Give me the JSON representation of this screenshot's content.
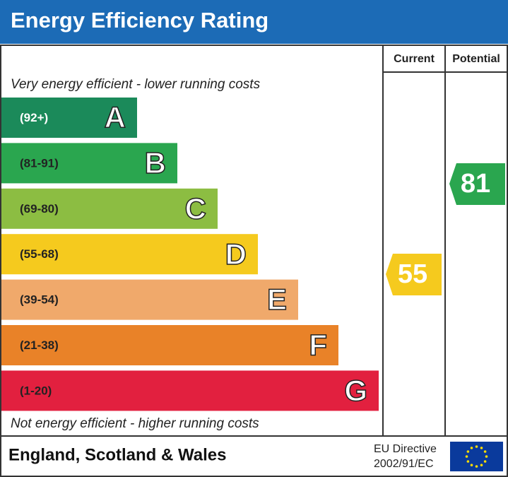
{
  "header": {
    "title": "Energy Efficiency Rating"
  },
  "columns": {
    "current": "Current",
    "potential": "Potential"
  },
  "top_note": "Very energy efficient - lower running costs",
  "bottom_note": "Not energy efficient - higher running costs",
  "bands": [
    {
      "range": "(92+)",
      "letter": "A",
      "color": "#1b8a5a"
    },
    {
      "range": "(81-91)",
      "letter": "B",
      "color": "#2aa64f"
    },
    {
      "range": "(69-80)",
      "letter": "C",
      "color": "#8cbd42"
    },
    {
      "range": "(55-68)",
      "letter": "D",
      "color": "#f5ca1e"
    },
    {
      "range": "(39-54)",
      "letter": "E",
      "color": "#f0a96b"
    },
    {
      "range": "(21-38)",
      "letter": "F",
      "color": "#e98228"
    },
    {
      "range": "(1-20)",
      "letter": "G",
      "color": "#e2203f"
    }
  ],
  "current": {
    "value": 55,
    "color": "#f5ca1e"
  },
  "potential": {
    "value": 81,
    "color": "#2aa64f"
  },
  "footer": {
    "region": "England, Scotland & Wales",
    "directive_line1": "EU Directive",
    "directive_line2": "2002/91/EC"
  }
}
